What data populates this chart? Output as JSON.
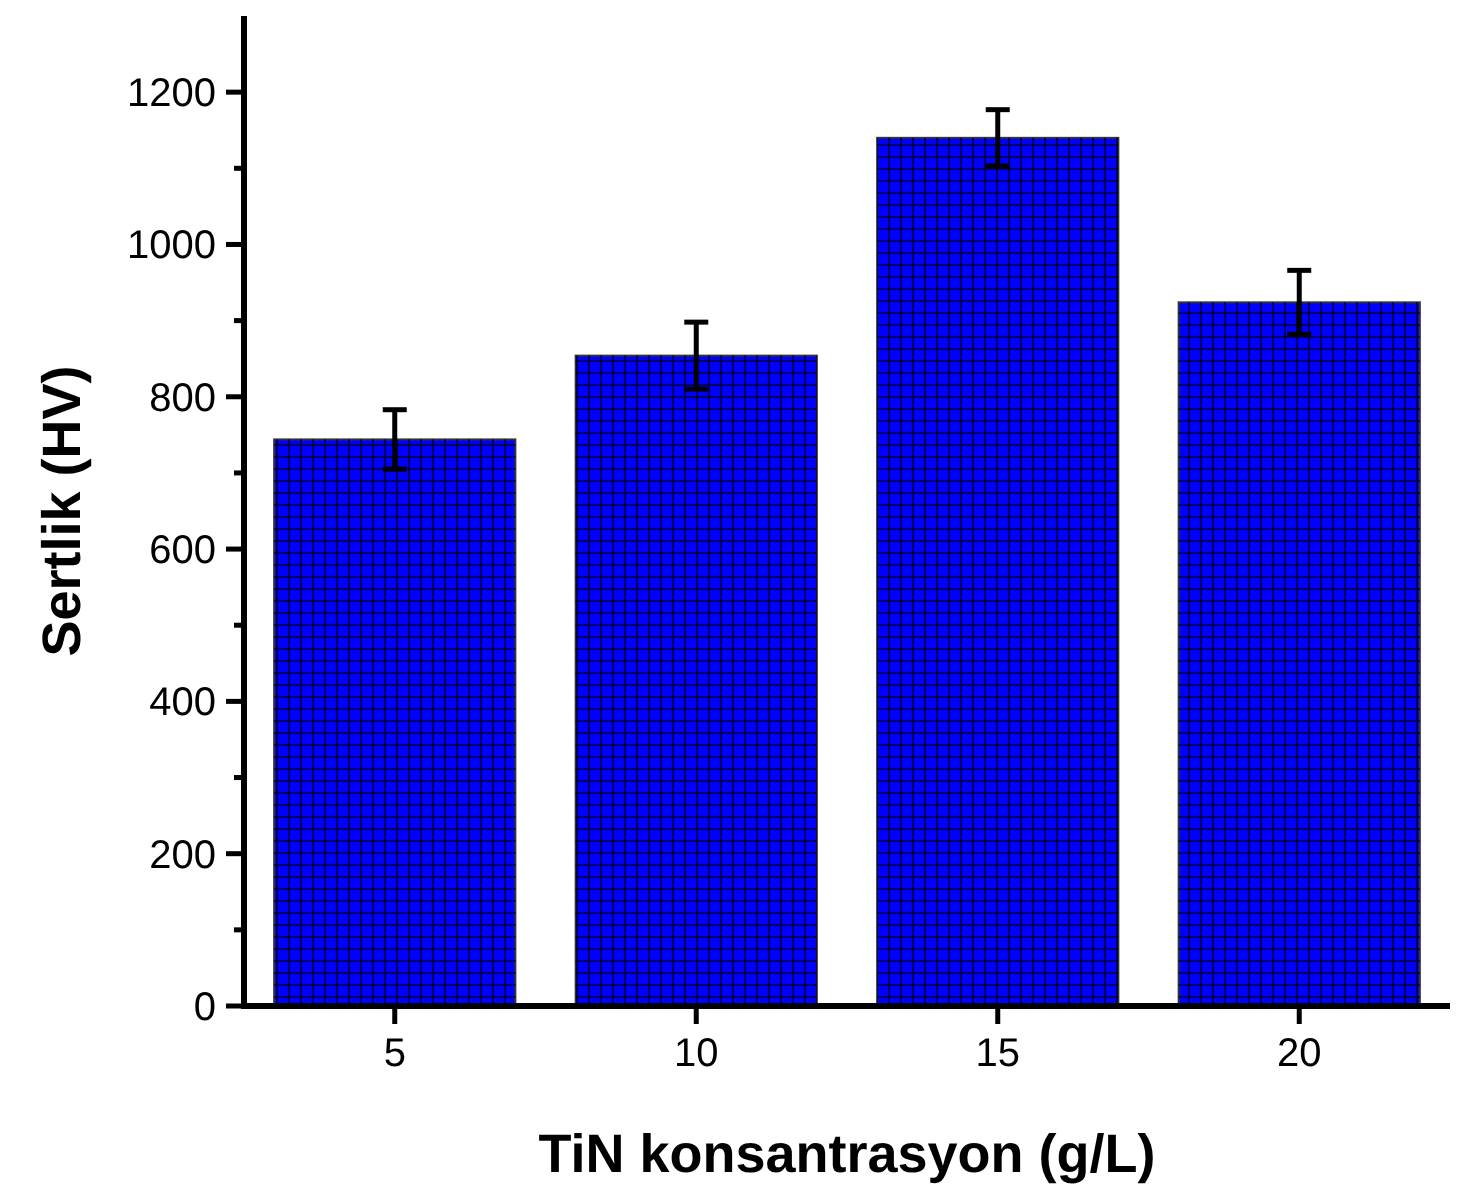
{
  "chart_data": {
    "type": "bar",
    "xlabel": "TiN konsantrasyon (g/L)",
    "ylabel": "Sertlik (HV)",
    "categories": [
      "5",
      "10",
      "15",
      "20"
    ],
    "values": [
      744,
      854,
      1140,
      924
    ],
    "errors": [
      39,
      44,
      37,
      42
    ],
    "color": "#0000ff",
    "ylim": [
      0,
      1300
    ],
    "yticks": [
      0,
      {
        "value": 100,
        "label": null
      },
      200,
      {
        "value": 300,
        "label": null
      },
      400,
      {
        "value": 500,
        "label": null
      },
      600,
      {
        "value": 700,
        "label": null
      },
      800,
      {
        "value": 900,
        "label": null
      },
      1000,
      {
        "value": 1100,
        "label": null
      },
      1200
    ],
    "grid": false
  }
}
